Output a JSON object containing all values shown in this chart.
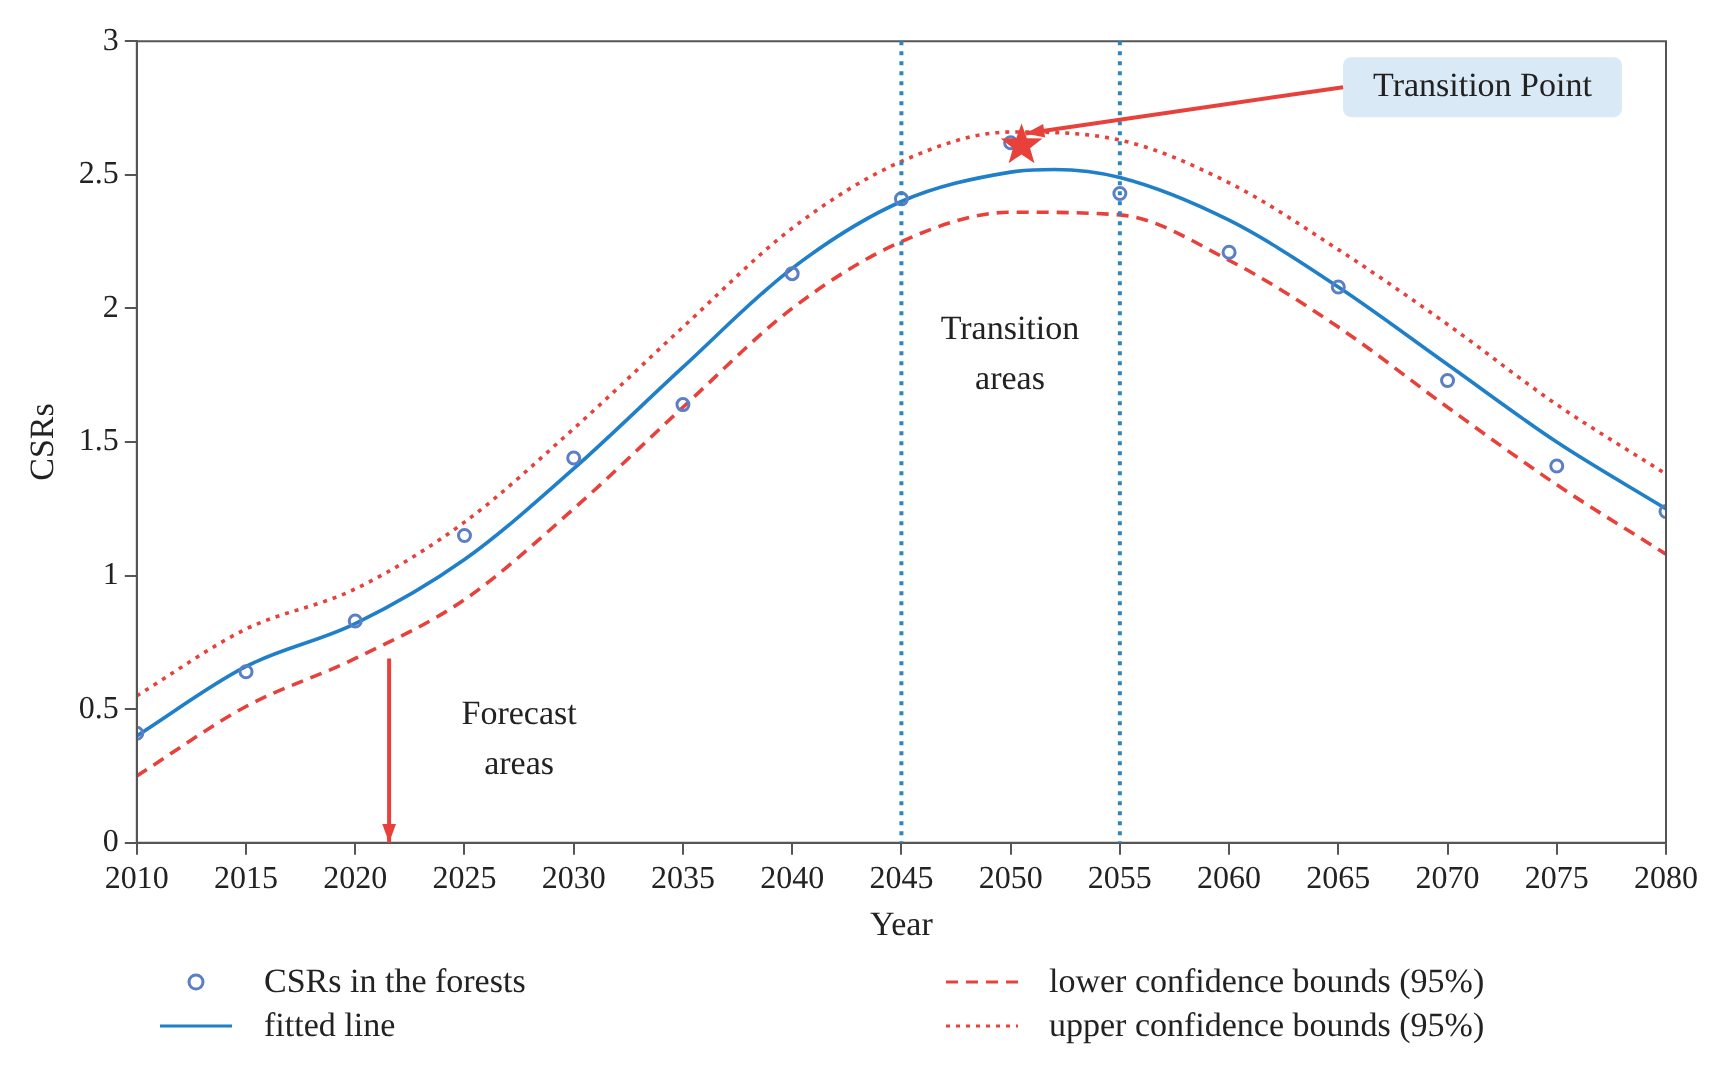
{
  "chart_data": {
    "type": "line",
    "xlabel": "Year",
    "ylabel": "CSRs",
    "x": [
      2010,
      2015,
      2020,
      2025,
      2030,
      2035,
      2040,
      2045,
      2050,
      2055,
      2060,
      2065,
      2070,
      2075,
      2080
    ],
    "xlim": [
      2010,
      2080
    ],
    "xticks": [
      2010,
      2015,
      2020,
      2025,
      2030,
      2035,
      2040,
      2045,
      2050,
      2055,
      2060,
      2065,
      2070,
      2075,
      2080
    ],
    "ylim": [
      0,
      3
    ],
    "yticks": [
      0,
      0.5,
      1,
      1.5,
      2,
      2.5,
      3
    ],
    "grid": false,
    "legend": "bottom",
    "series": [
      {
        "name": "CSRs in the forests",
        "type": "scatter",
        "marker": "circle",
        "color": "#5b7fc7",
        "values": [
          0.41,
          0.64,
          0.83,
          1.15,
          1.44,
          1.64,
          2.13,
          2.41,
          2.62,
          2.43,
          2.21,
          2.08,
          1.73,
          1.41,
          1.24
        ]
      },
      {
        "name": "fitted line",
        "line_style": "solid",
        "color": "#1f7fc9",
        "x": [
          2010,
          2015,
          2020,
          2025,
          2030,
          2035,
          2040,
          2045,
          2050,
          2052,
          2055,
          2060,
          2065,
          2070,
          2075,
          2080
        ],
        "values": [
          0.4,
          0.66,
          0.82,
          1.06,
          1.4,
          1.78,
          2.15,
          2.4,
          2.51,
          2.52,
          2.49,
          2.33,
          2.08,
          1.79,
          1.5,
          1.25
        ]
      },
      {
        "name": "lower confidence bounds (95%)",
        "line_style": "dashed",
        "color": "#e8403a",
        "values": [
          0.25,
          0.51,
          0.69,
          0.91,
          1.25,
          1.63,
          2.0,
          2.25,
          2.36,
          2.35,
          2.18,
          1.93,
          1.63,
          1.34,
          1.08
        ]
      },
      {
        "name": "upper confidence bounds (95%)",
        "line_style": "dotted",
        "color": "#e8403a",
        "values": [
          0.55,
          0.8,
          0.95,
          1.2,
          1.55,
          1.93,
          2.3,
          2.55,
          2.66,
          2.63,
          2.47,
          2.22,
          1.94,
          1.64,
          1.38
        ]
      },
      {
        "type": "scatter",
        "marker": "star",
        "color": "#e8403a",
        "x": [
          2050.5
        ],
        "values": [
          2.61
        ]
      }
    ],
    "ref_lines": [
      {
        "axis": "x",
        "value": 2045,
        "color": "#2e86c1",
        "line_style": "dotted"
      },
      {
        "axis": "x",
        "value": 2055,
        "color": "#2e86c1",
        "line_style": "dotted"
      }
    ],
    "annotations": [
      {
        "text": "Transition Point",
        "x": 2050.5,
        "y": 2.61
      },
      "Forecast areas",
      "Transition areas"
    ]
  }
}
